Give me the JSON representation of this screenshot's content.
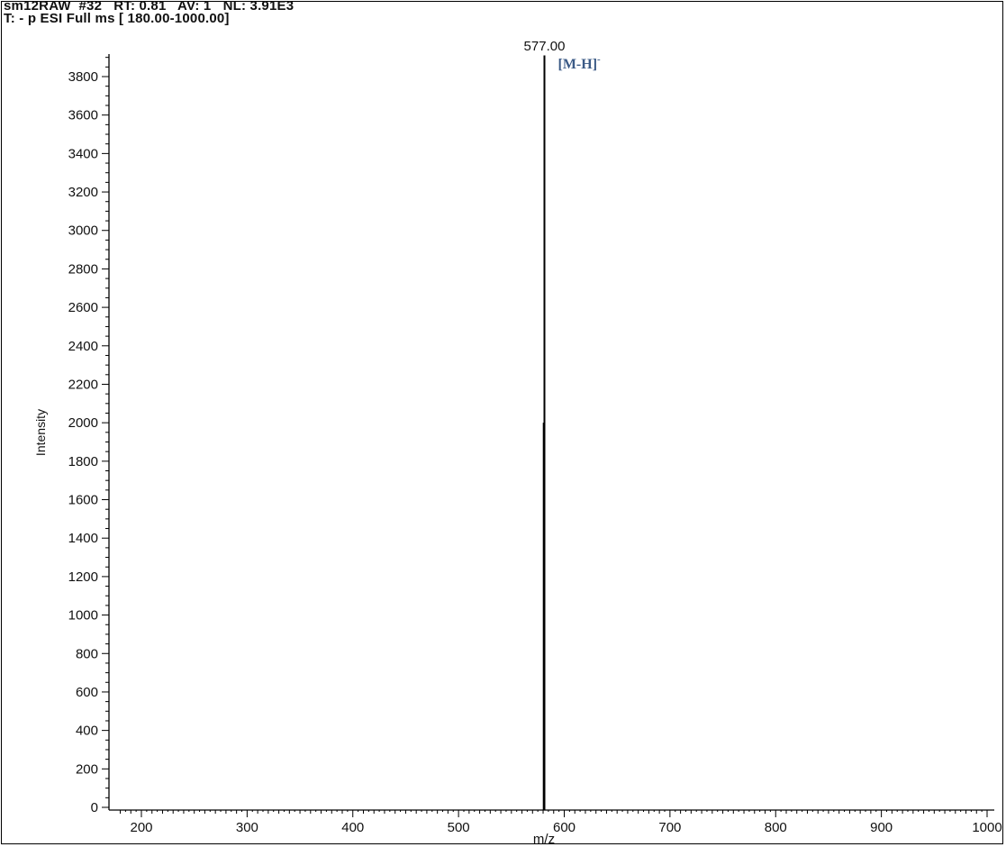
{
  "header": {
    "line1": "sm12RAW  #32   RT: 0.81   AV: 1   NL: 3.91E3",
    "line2": "T: - p ESI Full ms [ 180.00-1000.00]"
  },
  "chart_data": {
    "type": "bar",
    "xlabel": "m/z",
    "ylabel": "Intensity",
    "xlim": [
      180,
      1000
    ],
    "ylim": [
      0,
      3910
    ],
    "x_ticks": [
      "200",
      "300",
      "400",
      "500",
      "600",
      "700",
      "800",
      "900",
      "1000"
    ],
    "y_ticks": [
      "0",
      "200",
      "400",
      "600",
      "800",
      "1000",
      "1200",
      "1400",
      "1600",
      "1800",
      "2000",
      "2200",
      "2400",
      "2600",
      "2800",
      "3000",
      "3200",
      "3400",
      "3600",
      "3800"
    ],
    "peaks": [
      {
        "mz": 577.0,
        "intensity": 3910,
        "label": "577.00"
      }
    ],
    "annotation": {
      "text": "[M-H]",
      "superscript": "-",
      "mz": 577.0
    },
    "colors": {
      "spectrum": "#000000",
      "annotation": "#3b5a86"
    }
  }
}
